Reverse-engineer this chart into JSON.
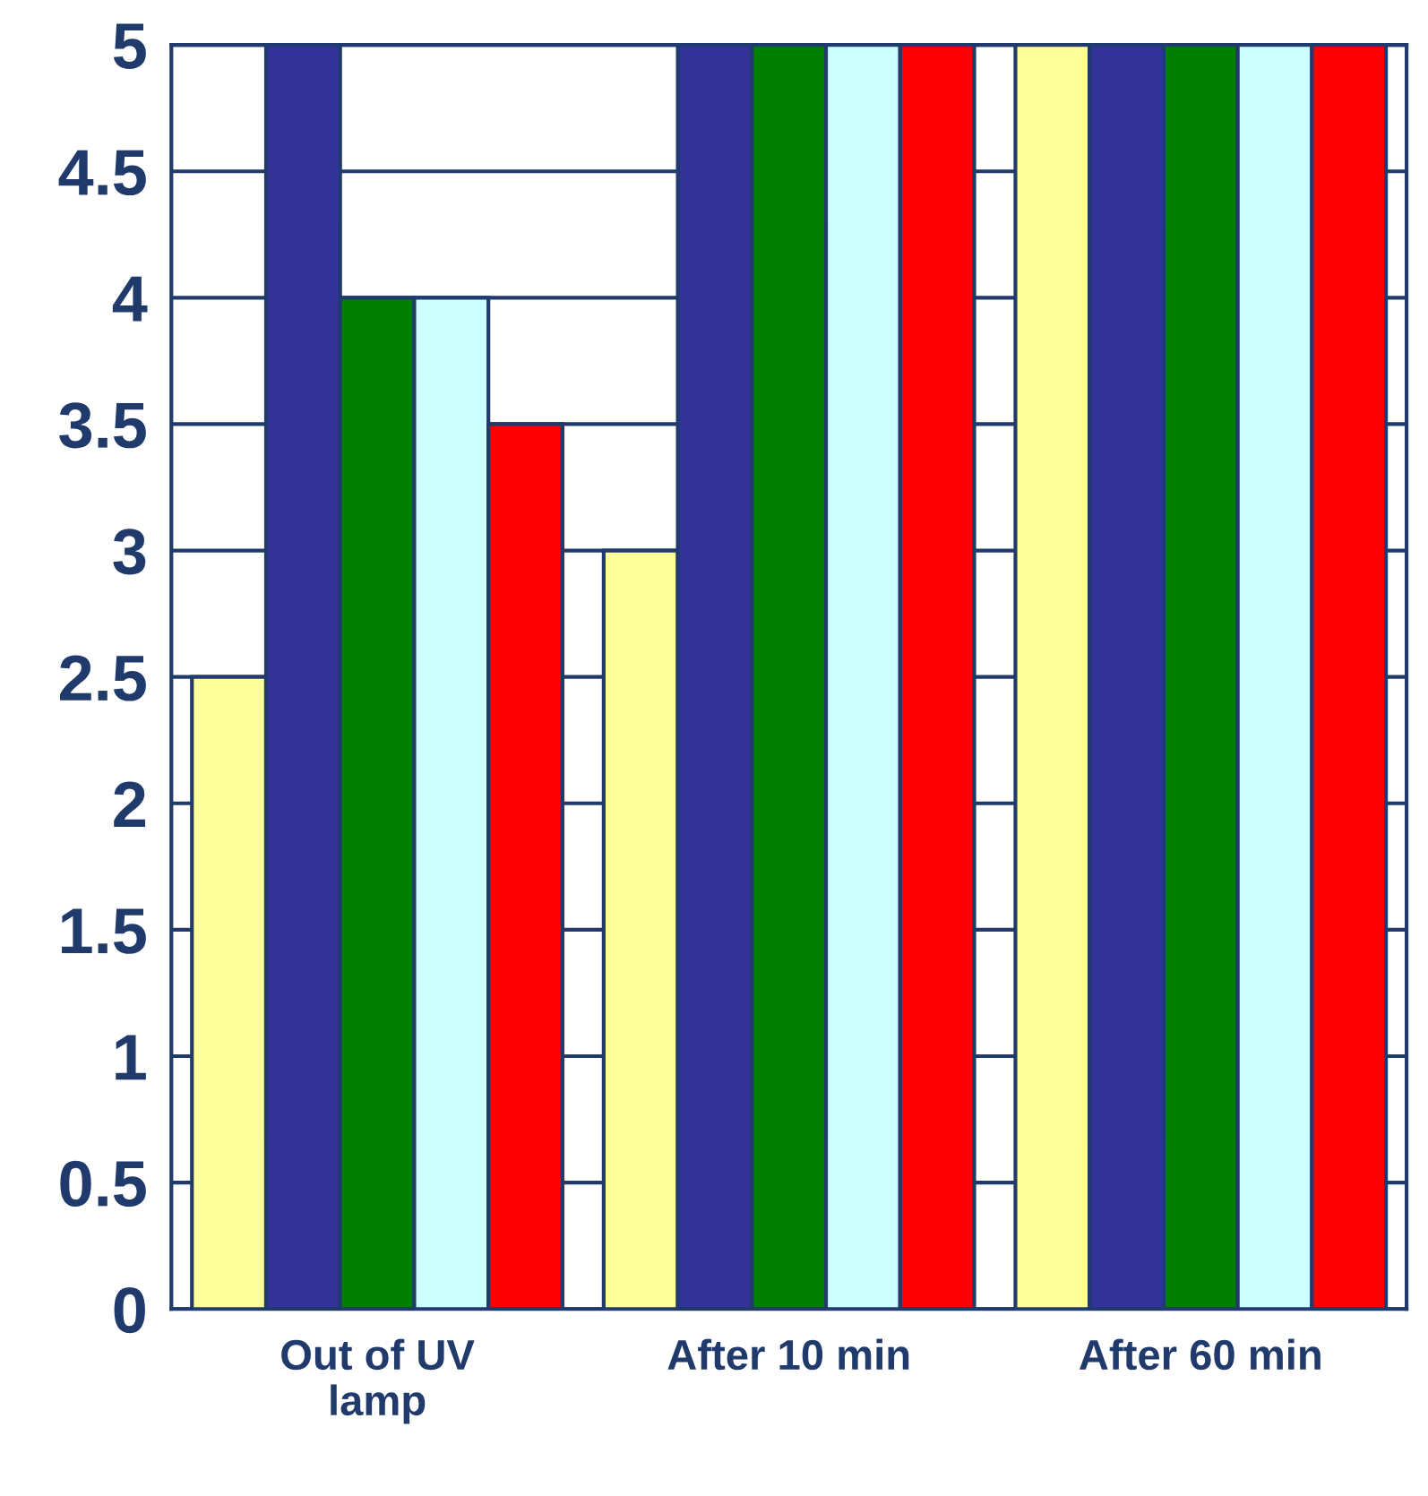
{
  "chart_data": {
    "type": "bar",
    "categories": [
      "Out of UV\nlamp",
      "After 10 min",
      "After 60 min"
    ],
    "series": [
      {
        "color": "#ffff99",
        "values": [
          2.5,
          3,
          5
        ]
      },
      {
        "color": "#333399",
        "values": [
          5,
          5,
          5
        ]
      },
      {
        "color": "#008000",
        "values": [
          4,
          5,
          5
        ]
      },
      {
        "color": "#ccffff",
        "values": [
          4,
          5,
          5
        ]
      },
      {
        "color": "#ff0000",
        "values": [
          3.5,
          5,
          5
        ]
      }
    ],
    "ylim": [
      0,
      5
    ],
    "yticks": [
      0,
      0.5,
      1,
      1.5,
      2,
      2.5,
      3,
      3.5,
      4,
      4.5,
      5
    ],
    "grid": "y",
    "legend": false
  }
}
